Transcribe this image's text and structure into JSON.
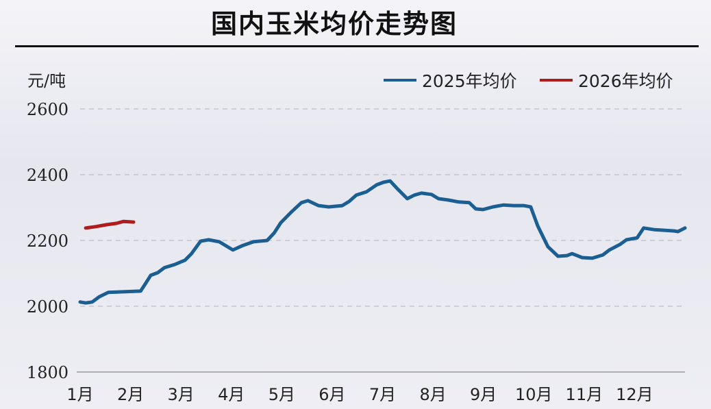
{
  "chart_data": {
    "type": "line",
    "title": "国内玉米均价走势图",
    "ylabel": "元/吨",
    "ylim": [
      1800,
      2600
    ],
    "yticks": [
      1800,
      2000,
      2200,
      2400,
      2600
    ],
    "xlim": [
      1,
      13
    ],
    "xticks": [
      {
        "x": 1,
        "label": "1月"
      },
      {
        "x": 2,
        "label": "2月"
      },
      {
        "x": 3,
        "label": "3月"
      },
      {
        "x": 4,
        "label": "4月"
      },
      {
        "x": 5,
        "label": "5月"
      },
      {
        "x": 6,
        "label": "6月"
      },
      {
        "x": 7,
        "label": "7月"
      },
      {
        "x": 8,
        "label": "8月"
      },
      {
        "x": 9,
        "label": "9月"
      },
      {
        "x": 10,
        "label": "10月"
      },
      {
        "x": 11,
        "label": "11月"
      },
      {
        "x": 12,
        "label": "12月"
      }
    ],
    "grid": "horizontal dashed",
    "legend": "top-right",
    "series": [
      {
        "name": "2025年均价",
        "color": "#1a5e92",
        "x": [
          1.0,
          1.11,
          1.24,
          1.38,
          1.56,
          1.86,
          2.2,
          2.29,
          2.4,
          2.54,
          2.67,
          2.88,
          3.08,
          3.21,
          3.39,
          3.55,
          3.76,
          4.03,
          4.23,
          4.44,
          4.71,
          4.85,
          4.98,
          5.18,
          5.39,
          5.52,
          5.73,
          5.93,
          6.2,
          6.34,
          6.48,
          6.68,
          6.88,
          7.02,
          7.15,
          7.29,
          7.49,
          7.63,
          7.77,
          7.97,
          8.11,
          8.31,
          8.51,
          8.72,
          8.85,
          8.99,
          9.19,
          9.4,
          9.6,
          9.8,
          9.94,
          10.08,
          10.28,
          10.48,
          10.66,
          10.76,
          10.96,
          11.16,
          11.37,
          11.5,
          11.71,
          11.84,
          12.05,
          12.18,
          12.39,
          12.59,
          12.79,
          12.86,
          13.0
        ],
        "y": [
          2013,
          2010,
          2013,
          2029,
          2042,
          2044,
          2046,
          2067,
          2094,
          2102,
          2117,
          2127,
          2140,
          2160,
          2198,
          2202,
          2196,
          2171,
          2185,
          2196,
          2200,
          2223,
          2254,
          2285,
          2315,
          2321,
          2306,
          2302,
          2306,
          2319,
          2338,
          2348,
          2369,
          2377,
          2381,
          2358,
          2327,
          2338,
          2344,
          2340,
          2327,
          2323,
          2317,
          2315,
          2296,
          2294,
          2302,
          2308,
          2306,
          2306,
          2302,
          2244,
          2181,
          2152,
          2154,
          2160,
          2148,
          2146,
          2156,
          2171,
          2188,
          2202,
          2208,
          2238,
          2233,
          2231,
          2229,
          2227,
          2238
        ]
      },
      {
        "name": "2026年均价",
        "color": "#b01c1c",
        "x": [
          1.11,
          1.31,
          1.52,
          1.72,
          1.86,
          2.06
        ],
        "y": [
          2238,
          2242,
          2248,
          2252,
          2258,
          2256
        ]
      }
    ]
  }
}
